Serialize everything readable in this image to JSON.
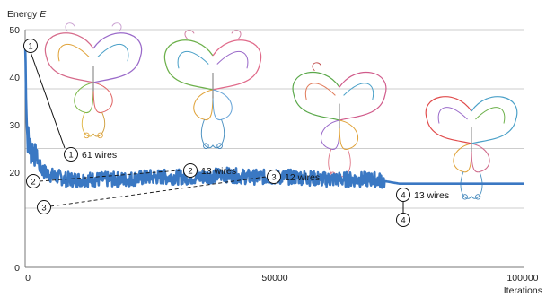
{
  "chart_data": {
    "type": "line",
    "ylabel": "Energy",
    "ylabel_symbol": "E",
    "xlabel": "Iterations",
    "xlim": [
      0,
      100000
    ],
    "ylim": [
      0,
      50
    ],
    "x_ticks": [
      "0",
      "50000",
      "100000"
    ],
    "y_ticks": [
      "0",
      "20",
      "30",
      "40",
      "50"
    ],
    "y_tick_values": [
      0,
      20,
      30,
      40,
      50
    ],
    "grid": "horizontal",
    "series": [
      {
        "color": "#3a78c3",
        "x": [
          0,
          400,
          1000,
          2000,
          3000,
          4000,
          5000,
          6000,
          7000,
          8000,
          9000,
          10000,
          15000,
          20000,
          25000,
          30000,
          35000,
          40000,
          45000,
          50000,
          55000,
          60000,
          65000,
          70000,
          75000,
          80000,
          85000,
          90000,
          95000,
          100000
        ],
        "y": [
          47,
          28,
          25,
          24.5,
          21,
          20,
          19.5,
          19,
          19,
          18.5,
          18.5,
          18.5,
          18.5,
          18.5,
          19,
          19,
          19,
          19.5,
          19,
          19,
          19,
          18.5,
          18.5,
          18.5,
          17.6,
          17.6,
          17.6,
          17.6,
          17.6,
          17.6
        ]
      }
    ],
    "annotations": [
      {
        "num": "1",
        "label": "61 wires",
        "x": 0,
        "y": 47,
        "label_line": "solid"
      },
      {
        "num": "2",
        "label": "13 wires",
        "x": 200,
        "y": 24.5,
        "label_line": "dashed"
      },
      {
        "num": "3",
        "label": "12 wires",
        "x": 2500,
        "y": 20,
        "label_line": "dashed"
      },
      {
        "num": "4",
        "label": "13 wires",
        "x": 75000,
        "y": 17.6,
        "label_line": "solid"
      }
    ]
  },
  "illustrations": [
    "butterfly-wire-art-1",
    "butterfly-wire-art-2",
    "butterfly-wire-art-3",
    "butterfly-wire-art-4"
  ]
}
